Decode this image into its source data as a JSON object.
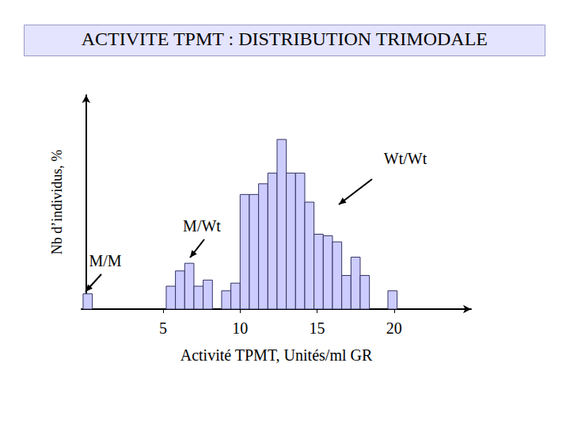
{
  "chart_data": {
    "type": "histogram",
    "title": "ACTIVITE TPMT : DISTRIBUTION TRIMODALE",
    "x_label": "Activité TPMT, Unités/ml GR",
    "y_label": "Nb d’individus, %",
    "bins": [
      -0.2,
      0.4,
      1.0,
      1.6,
      2.2,
      2.8,
      3.4,
      4.0,
      4.6,
      5.2,
      5.8,
      6.4,
      7.0,
      7.6,
      8.2,
      8.8,
      9.4,
      10.0,
      10.6,
      11.2,
      11.8,
      12.4,
      13.0,
      13.6,
      14.2,
      14.8,
      15.4,
      16.0,
      16.6,
      17.2,
      17.8,
      18.4,
      19.0,
      19.6,
      20.2
    ],
    "counts": [
      1.0,
      0,
      0,
      0,
      0,
      0,
      0,
      0,
      0,
      1.5,
      2.5,
      3.0,
      1.5,
      1.9,
      0,
      1.2,
      1.7,
      7.5,
      7.5,
      8.2,
      8.9,
      11.1,
      8.9,
      8.9,
      7.0,
      4.9,
      4.8,
      4.4,
      2.2,
      3.4,
      2.2,
      0,
      0,
      1.2
    ],
    "color": "#ccccff",
    "xlim": [
      -0.3,
      25
    ],
    "xticks": [
      5,
      10,
      15,
      20
    ],
    "ylim": [
      0,
      14
    ],
    "tick_labels": "x",
    "grid": false,
    "annotations": [
      "Wt/Wt",
      "M/Wt",
      "M/M"
    ]
  }
}
